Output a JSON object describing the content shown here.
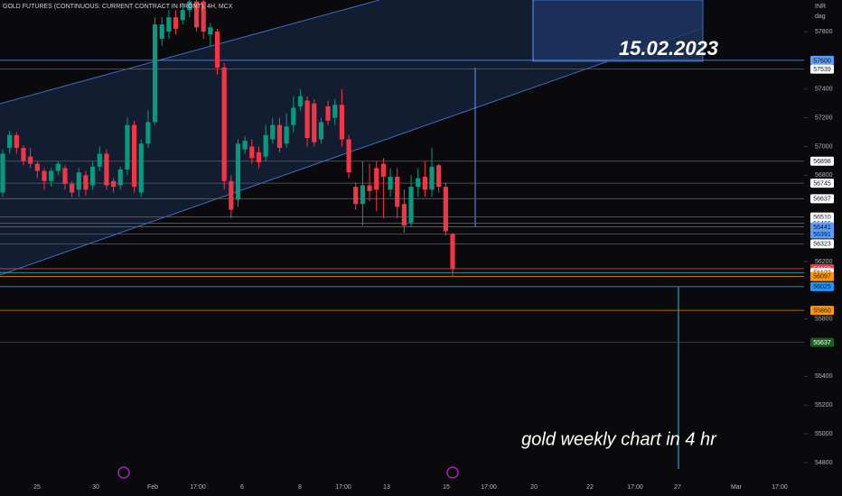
{
  "chart_data": {
    "type": "candlestick",
    "title": "GOLD FUTURES (CONTINUOUS: CURRENT CONTRACT IN FRONT), 4H, MCX",
    "currency": "INR",
    "currency_sub": "dag",
    "annotations": [
      "15.02.2023",
      "gold weekly chart in 4 hr"
    ],
    "x_axis_labels": [
      "25",
      "30",
      "Feb",
      "17:00",
      "6",
      "8",
      "17:00",
      "13",
      "15",
      "17:00",
      "20",
      "22",
      "17:00",
      "27",
      "Mar",
      "17:00"
    ],
    "up_color": "#089981",
    "down_color": "#f23645",
    "ylim": [
      54756,
      58020
    ],
    "yticks": [
      57800,
      57400,
      57200,
      57000,
      56800,
      56200,
      55800,
      55400,
      55200,
      55000,
      54800
    ],
    "open": [
      56680,
      56990,
      57080,
      56990,
      56930,
      56880,
      56830,
      56760,
      56830,
      56850,
      56740,
      56700,
      56800,
      56730,
      56860,
      56950,
      56760,
      56730,
      56840,
      57150,
      56680,
      57020,
      57170,
      57750,
      57800,
      57900,
      57880,
      57950,
      58010,
      58010,
      57780,
      57800,
      57550,
      56760,
      56630,
      56980,
      57000,
      56960,
      56930,
      57050,
      57150,
      57020,
      57150,
      57280,
      57320,
      57300,
      57050,
      57280,
      57200,
      57290,
      57050,
      56720,
      56600,
      56730,
      56850,
      56880,
      56700,
      56790,
      56600,
      56470,
      56720,
      56790,
      56700,
      56870,
      56720,
      56390
    ],
    "high": [
      56980,
      57110,
      57100,
      57010,
      56990,
      56900,
      56850,
      56850,
      56900,
      56870,
      56760,
      56850,
      56830,
      56900,
      57000,
      56980,
      56780,
      56860,
      57200,
      57180,
      57050,
      57250,
      57900,
      57900,
      57950,
      57950,
      58000,
      58020,
      58020,
      58020,
      57860,
      57820,
      57580,
      56800,
      57050,
      57070,
      57050,
      57000,
      57150,
      57200,
      57200,
      57230,
      57350,
      57400,
      57350,
      57330,
      57200,
      57320,
      57330,
      57400,
      57080,
      56750,
      56900,
      56880,
      56900,
      56920,
      56850,
      56850,
      56700,
      56800,
      56850,
      56900,
      56990,
      56880,
      56750,
      56400
    ],
    "low": [
      56650,
      56950,
      56950,
      56870,
      56850,
      56780,
      56700,
      56720,
      56800,
      56700,
      56650,
      56650,
      56660,
      56700,
      56830,
      56700,
      56680,
      56700,
      56800,
      56680,
      56650,
      56990,
      57150,
      57700,
      57750,
      57780,
      57850,
      57900,
      57800,
      57750,
      57700,
      57500,
      56700,
      56500,
      56580,
      56950,
      56880,
      56850,
      56900,
      57020,
      56960,
      56990,
      57100,
      57250,
      57000,
      57000,
      57020,
      57150,
      57150,
      57000,
      56780,
      56560,
      56450,
      56620,
      56550,
      56500,
      56650,
      56500,
      56400,
      56440,
      56650,
      56650,
      56650,
      56680,
      56380,
      56100
    ],
    "close": [
      56950,
      57080,
      56990,
      56900,
      56880,
      56830,
      56760,
      56830,
      56880,
      56740,
      56680,
      56820,
      56700,
      56860,
      56950,
      56730,
      56720,
      56840,
      57150,
      56720,
      57020,
      57170,
      57850,
      57850,
      57900,
      57820,
      57950,
      58010,
      57830,
      57800,
      57830,
      57550,
      56760,
      56560,
      57020,
      57040,
      56920,
      56890,
      57080,
      57150,
      56990,
      57140,
      57270,
      57350,
      57060,
      57030,
      57170,
      57180,
      57290,
      57050,
      56820,
      56600,
      56730,
      56690,
      56700,
      56790,
      56790,
      56580,
      56450,
      56720,
      56780,
      56700,
      56860,
      56720,
      56410,
      56150
    ],
    "price_levels": [
      {
        "value": 57600,
        "color": "#5b9cf6",
        "text_color": "#131722",
        "line": "#5b9cf6"
      },
      {
        "value": 57539,
        "color": "#ffffff",
        "text_color": "#131722",
        "line": "#5d606b"
      },
      {
        "value": 56898,
        "color": "#ffffff",
        "text_color": "#131722",
        "line": "#5d606b"
      },
      {
        "value": 56745,
        "color": "#ffffff",
        "text_color": "#131722",
        "line": "#5d606b"
      },
      {
        "value": 56637,
        "color": "#ffffff",
        "text_color": "#131722",
        "line": "#5d606b"
      },
      {
        "value": 56510,
        "color": "#ffffff",
        "text_color": "#131722",
        "line": "#5d606b"
      },
      {
        "value": 56466,
        "color": "#ffffff",
        "text_color": "#131722",
        "line": "#5d606b"
      },
      {
        "value": 56441,
        "color": "#5b9cf6",
        "text_color": "#131722",
        "line": "#5d606b"
      },
      {
        "value": 56391,
        "color": "#5b9cf6",
        "text_color": "#131722",
        "line": "#5d606b"
      },
      {
        "value": 56323,
        "color": "#ffffff",
        "text_color": "#131722",
        "line": "#5d606b"
      },
      {
        "value": 56150,
        "color": "#f23645",
        "text_color": "#ffffff",
        "line": "#f23645",
        "countdown": "03:23:10"
      },
      {
        "value": 56123,
        "color": "#ffffff",
        "text_color": "#131722",
        "line": "#26c6da"
      },
      {
        "value": 56097,
        "color": "#ff9800",
        "text_color": "#131722",
        "line": "#ff9800"
      },
      {
        "value": 56025,
        "color": "#2196f3",
        "text_color": "#131722",
        "line": "#2196f3"
      },
      {
        "value": 55860,
        "color": "#ff9800",
        "text_color": "#131722",
        "line": "#f57c00"
      },
      {
        "value": 55637,
        "color": "#1b5e20",
        "text_color": "#ffffff",
        "line": "#5d4037"
      }
    ]
  }
}
